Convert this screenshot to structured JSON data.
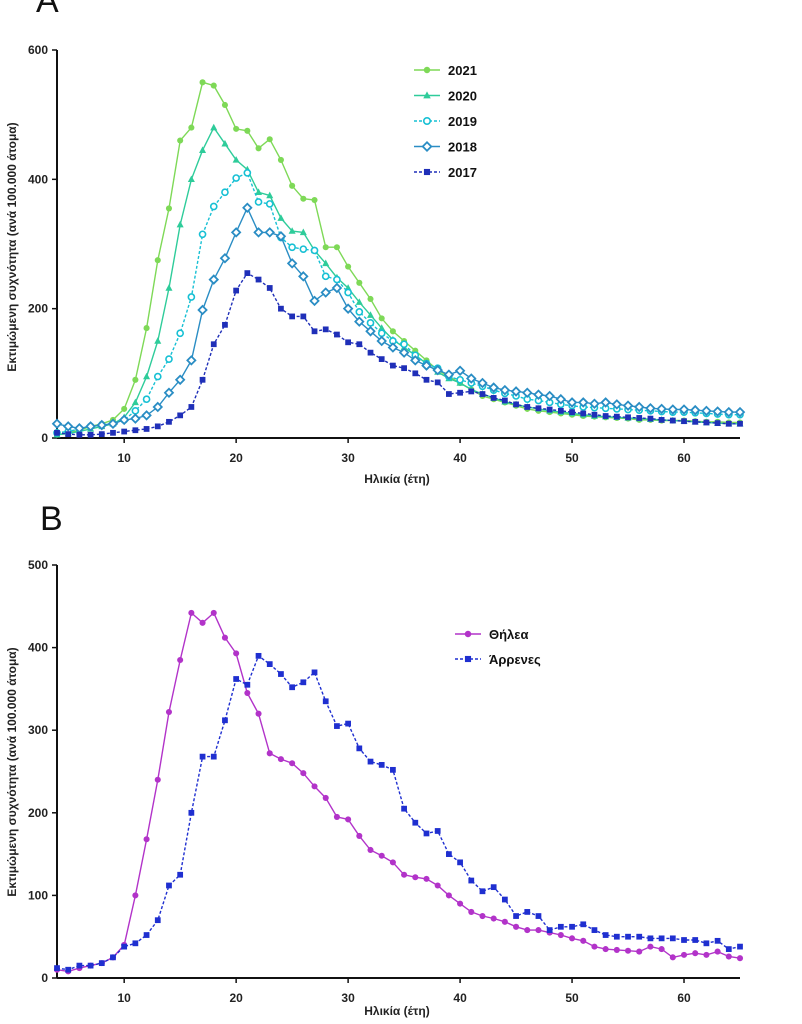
{
  "chart_data": [
    {
      "panel": "A",
      "type": "line",
      "xlabel": "Ηλικία (έτη)",
      "ylabel": "Εκτιμώμενη συχνότητα (ανά 100.000 άτομα)",
      "xlim": [
        4,
        65
      ],
      "ylim": [
        0,
        600
      ],
      "xticks": [
        10,
        20,
        30,
        40,
        50,
        60
      ],
      "yticks": [
        0,
        200,
        400,
        600
      ],
      "legend_position": "top-right",
      "x": [
        4,
        5,
        6,
        7,
        8,
        9,
        10,
        11,
        12,
        13,
        14,
        15,
        16,
        17,
        18,
        19,
        20,
        21,
        22,
        23,
        24,
        25,
        26,
        27,
        28,
        29,
        30,
        31,
        32,
        33,
        34,
        35,
        36,
        37,
        38,
        39,
        40,
        41,
        42,
        43,
        44,
        45,
        46,
        47,
        48,
        49,
        50,
        51,
        52,
        53,
        54,
        55,
        56,
        57,
        58,
        59,
        60,
        61,
        62,
        63,
        64,
        65
      ],
      "series": [
        {
          "name": "2021",
          "color": "#7ed957",
          "marker": "circle-filled",
          "dash": false,
          "values": [
            5,
            8,
            12,
            18,
            22,
            28,
            45,
            90,
            170,
            275,
            355,
            460,
            480,
            550,
            545,
            515,
            478,
            475,
            448,
            462,
            430,
            390,
            370,
            368,
            295,
            295,
            265,
            240,
            215,
            185,
            165,
            150,
            135,
            120,
            105,
            95,
            85,
            75,
            65,
            60,
            55,
            50,
            45,
            42,
            40,
            38,
            36,
            34,
            33,
            32,
            31,
            30,
            28,
            28,
            27,
            27,
            27,
            26,
            25,
            25,
            24,
            24
          ]
        },
        {
          "name": "2020",
          "color": "#2ecc9a",
          "marker": "triangle",
          "dash": false,
          "values": [
            5,
            7,
            10,
            14,
            18,
            22,
            32,
            55,
            95,
            150,
            232,
            330,
            400,
            445,
            480,
            455,
            430,
            415,
            380,
            375,
            340,
            320,
            318,
            290,
            270,
            248,
            232,
            210,
            190,
            170,
            152,
            140,
            128,
            115,
            102,
            92,
            85,
            75,
            68,
            62,
            56,
            52,
            48,
            45,
            42,
            40,
            38,
            36,
            34,
            33,
            32,
            31,
            30,
            29,
            28,
            27,
            26,
            25,
            24,
            23,
            22,
            22
          ]
        },
        {
          "name": "2019",
          "color": "#17c0d4",
          "marker": "circle-open",
          "dash": true,
          "values": [
            8,
            10,
            14,
            18,
            20,
            22,
            28,
            42,
            60,
            95,
            122,
            162,
            218,
            315,
            358,
            380,
            402,
            410,
            365,
            362,
            310,
            295,
            292,
            290,
            250,
            245,
            225,
            195,
            178,
            162,
            150,
            145,
            128,
            115,
            108,
            95,
            90,
            85,
            80,
            74,
            69,
            65,
            60,
            58,
            55,
            52,
            50,
            48,
            47,
            46,
            45,
            44,
            43,
            42,
            41,
            40,
            40,
            39,
            38,
            37,
            36,
            36
          ]
        },
        {
          "name": "2018",
          "color": "#2a8dc4",
          "marker": "diamond",
          "dash": false,
          "values": [
            22,
            18,
            15,
            18,
            20,
            22,
            28,
            30,
            35,
            48,
            70,
            90,
            120,
            198,
            245,
            278,
            318,
            356,
            318,
            318,
            312,
            270,
            250,
            212,
            225,
            232,
            200,
            180,
            165,
            150,
            140,
            132,
            120,
            112,
            105,
            98,
            104,
            92,
            85,
            78,
            74,
            72,
            70,
            67,
            65,
            60,
            55,
            55,
            53,
            55,
            52,
            50,
            48,
            46,
            45,
            44,
            44,
            43,
            42,
            41,
            40,
            40
          ]
        },
        {
          "name": "2017",
          "color": "#1f2fb8",
          "marker": "square",
          "dash": true,
          "values": [
            8,
            6,
            5,
            5,
            6,
            8,
            10,
            12,
            14,
            18,
            25,
            35,
            48,
            90,
            145,
            175,
            228,
            255,
            245,
            232,
            200,
            188,
            188,
            165,
            168,
            160,
            148,
            145,
            132,
            122,
            112,
            108,
            100,
            90,
            86,
            68,
            70,
            72,
            68,
            62,
            58,
            52,
            48,
            46,
            44,
            42,
            40,
            38,
            36,
            34,
            33,
            32,
            31,
            30,
            28,
            27,
            26,
            25,
            24,
            23,
            22,
            22
          ]
        }
      ]
    },
    {
      "panel": "B",
      "type": "line",
      "xlabel": "Ηλικία (έτη)",
      "ylabel": "Εκτιμώμενη συχνότητα (ανά 100.000 άτομα)",
      "xlim": [
        4,
        65
      ],
      "ylim": [
        0,
        500
      ],
      "xticks": [
        10,
        20,
        30,
        40,
        50,
        60
      ],
      "yticks": [
        0,
        100,
        200,
        300,
        400,
        500
      ],
      "legend_position": "top-right",
      "x": [
        4,
        5,
        6,
        7,
        8,
        9,
        10,
        11,
        12,
        13,
        14,
        15,
        16,
        17,
        18,
        19,
        20,
        21,
        22,
        23,
        24,
        25,
        26,
        27,
        28,
        29,
        30,
        31,
        32,
        33,
        34,
        35,
        36,
        37,
        38,
        39,
        40,
        41,
        42,
        43,
        44,
        45,
        46,
        47,
        48,
        49,
        50,
        51,
        52,
        53,
        54,
        55,
        56,
        57,
        58,
        59,
        60,
        61,
        62,
        63,
        64,
        65
      ],
      "series": [
        {
          "name": "Θήλεα",
          "color": "#b233c9",
          "marker": "circle-filled",
          "dash": false,
          "values": [
            10,
            8,
            12,
            15,
            18,
            25,
            40,
            100,
            168,
            240,
            322,
            385,
            442,
            430,
            442,
            412,
            393,
            345,
            320,
            272,
            265,
            260,
            248,
            232,
            218,
            195,
            192,
            172,
            155,
            148,
            140,
            125,
            122,
            120,
            112,
            100,
            90,
            80,
            75,
            72,
            68,
            62,
            58,
            58,
            55,
            52,
            48,
            45,
            38,
            35,
            34,
            33,
            32,
            38,
            35,
            25,
            28,
            30,
            28,
            32,
            26,
            24
          ]
        },
        {
          "name": "Άρρενες",
          "color": "#1f2fd0",
          "marker": "square",
          "dash": true,
          "values": [
            12,
            10,
            15,
            15,
            18,
            25,
            38,
            42,
            52,
            70,
            112,
            125,
            200,
            268,
            268,
            312,
            362,
            355,
            390,
            380,
            368,
            352,
            358,
            370,
            335,
            305,
            308,
            278,
            262,
            258,
            252,
            205,
            188,
            175,
            178,
            150,
            140,
            118,
            105,
            110,
            95,
            75,
            80,
            75,
            58,
            62,
            62,
            65,
            58,
            52,
            50,
            50,
            50,
            48,
            48,
            48,
            46,
            46,
            42,
            45,
            35,
            38
          ]
        }
      ]
    }
  ],
  "panel_labels": {
    "a": "A",
    "b": "B"
  },
  "x_axis_title_a": "Ηλικία (έτη)",
  "x_axis_title_b": "Ηλικία (έτη)",
  "y_axis_title_a": "Εκτιμώμενη συχνότητα (ανά 100.000 άτομα)",
  "y_axis_title_b": "Εκτιμώμενη συχνότητα (ανά 100.000 άτομα)"
}
